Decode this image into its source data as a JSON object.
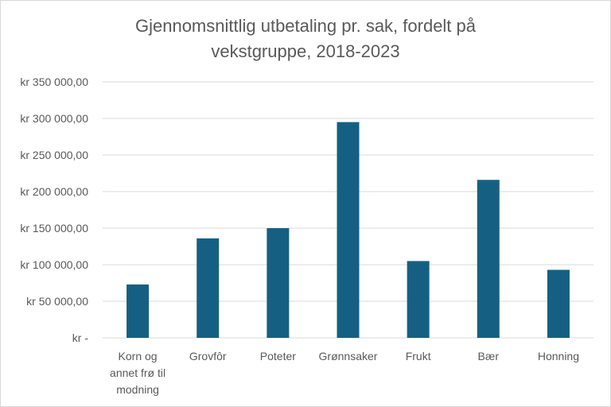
{
  "chart_data": {
    "type": "bar",
    "title_lines": [
      "Gjennomsnittlig utbetaling pr. sak, fordelt på",
      "vekstgruppe, 2018-2023"
    ],
    "categories": [
      [
        "Korn og",
        "annet frø til",
        "modning"
      ],
      [
        "Grovfôr"
      ],
      [
        "Poteter"
      ],
      [
        "Grønnsaker"
      ],
      [
        "Frukt"
      ],
      [
        "Bær"
      ],
      [
        "Honning"
      ]
    ],
    "values": [
      73000,
      136000,
      150000,
      295000,
      105000,
      216000,
      93000
    ],
    "ylim": [
      0,
      350000
    ],
    "y_ticks": [
      0,
      50000,
      100000,
      150000,
      200000,
      250000,
      300000,
      350000
    ],
    "y_tick_labels": [
      "kr -",
      "kr 50 000,00",
      "kr 100 000,00",
      "kr 150 000,00",
      "kr 200 000,00",
      "kr 250 000,00",
      "kr 300 000,00",
      "kr 350 000,00"
    ],
    "grid": true,
    "bar_color": "#156082",
    "grid_color": "#d9d9d9"
  }
}
